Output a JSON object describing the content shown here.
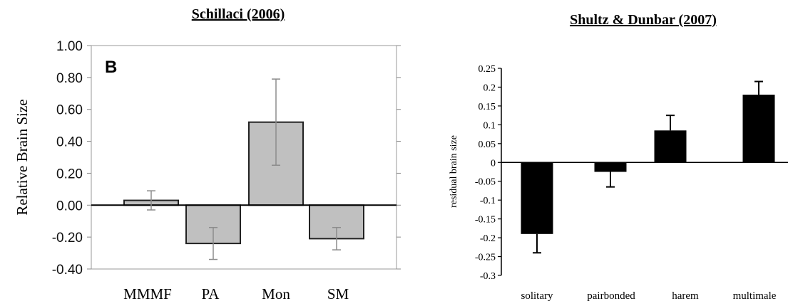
{
  "chart_data": [
    {
      "type": "bar",
      "title": "Schillaci (2006)",
      "panel_label": "B",
      "ylabel": "Relative Brain Size",
      "xlabel": "",
      "categories": [
        "MMMF",
        "PA",
        "Mon",
        "SM"
      ],
      "values": [
        0.03,
        -0.24,
        0.52,
        -0.21
      ],
      "error": [
        0.06,
        0.1,
        0.27,
        0.07
      ],
      "ylim": [
        -0.4,
        1.0
      ],
      "yticks": [
        1.0,
        0.8,
        0.6,
        0.4,
        0.2,
        0.0,
        -0.2,
        -0.4
      ],
      "ytick_labels": [
        "1.00",
        "0.80",
        "0.60",
        "0.40",
        "0.20",
        "0.00",
        "-0.20",
        "-0.40"
      ],
      "bar_color": "#c0c0c0",
      "error_color": "#8c8c8c",
      "grid": false
    },
    {
      "type": "bar",
      "title": "Shultz & Dunbar (2007)",
      "ylabel": "residual brain size",
      "xlabel": "",
      "categories": [
        "solitary",
        "pairbonded",
        "harem",
        "multimale"
      ],
      "values": [
        -0.19,
        -0.025,
        0.085,
        0.18
      ],
      "error": [
        0.05,
        0.04,
        0.04,
        0.035
      ],
      "ylim": [
        -0.3,
        0.25
      ],
      "yticks": [
        0.25,
        0.2,
        0.15,
        0.1,
        0.05,
        0,
        -0.05,
        -0.1,
        -0.15,
        -0.2,
        -0.25,
        -0.3
      ],
      "ytick_labels": [
        "0.25",
        "0.2",
        "0.15",
        "0.1",
        "0.05",
        "0",
        "-0.05",
        "-0.1",
        "-0.15",
        "-0.2",
        "-0.25",
        "-0.3"
      ],
      "bar_color": "#000000",
      "grid": false
    }
  ]
}
